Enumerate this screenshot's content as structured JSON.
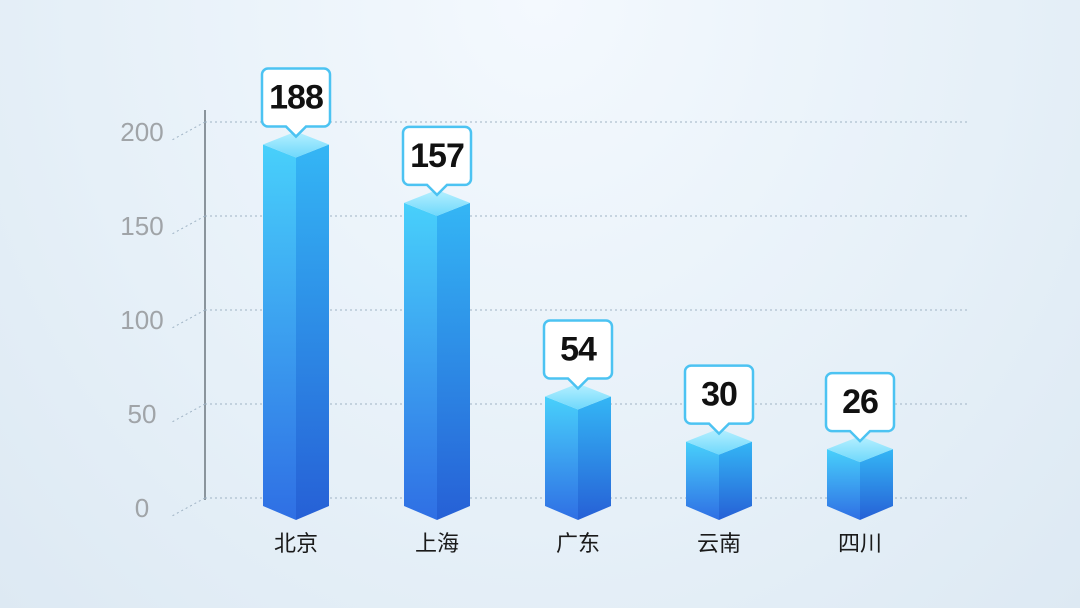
{
  "chart_data": {
    "type": "bar3d",
    "categories": [
      "北京",
      "上海",
      "广东",
      "云南",
      "四川"
    ],
    "values": [
      188,
      157,
      54,
      30,
      26
    ],
    "color": "#2f86ee",
    "ylim": [
      0,
      200
    ],
    "yticks": [
      0,
      50,
      100,
      150,
      200
    ],
    "grid": true
  }
}
